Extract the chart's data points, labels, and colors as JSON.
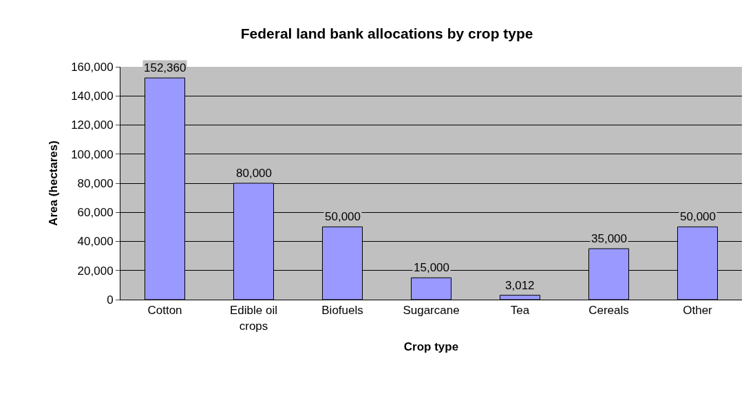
{
  "chart_data": {
    "type": "bar",
    "title": "Federal land bank allocations by crop type",
    "xlabel": "Crop type",
    "ylabel": "Area (hectares)",
    "categories": [
      "Cotton",
      "Edible oil crops",
      "Biofuels",
      "Sugarcane",
      "Tea",
      "Cereals",
      "Other"
    ],
    "values": [
      152360,
      80000,
      50000,
      15000,
      3012,
      35000,
      50000
    ],
    "color": "#9999ff",
    "ylim": [
      0,
      160000
    ],
    "yticks": [
      {
        "value": 0,
        "label": "0"
      },
      {
        "value": 20000,
        "label": "20,000"
      },
      {
        "value": 40000,
        "label": "40,000"
      },
      {
        "value": 60000,
        "label": "60,000"
      },
      {
        "value": 80000,
        "label": "80,000"
      },
      {
        "value": 100000,
        "label": "100,000"
      },
      {
        "value": 120000,
        "label": "120,000"
      },
      {
        "value": 140000,
        "label": "140,000"
      },
      {
        "value": 160000,
        "label": "160,000"
      }
    ],
    "value_labels": [
      "152,360",
      "80,000",
      "50,000",
      "15,000",
      "3,012",
      "35,000",
      "50,000"
    ],
    "grid": "y",
    "legend": false
  }
}
